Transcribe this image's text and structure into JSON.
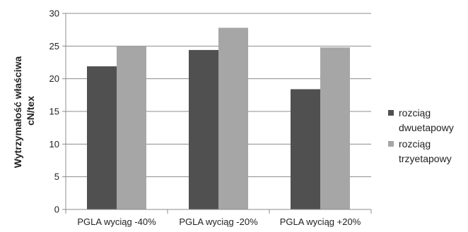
{
  "chart_data": {
    "type": "bar",
    "title": "",
    "xlabel": "",
    "ylabel": [
      "Wytrzymałość właściwa",
      "cN/tex"
    ],
    "categories": [
      "PGLA wyciąg -40%",
      "PGLA wyciąg -20%",
      "PGLA wyciąg +20%"
    ],
    "series": [
      {
        "name": [
          "rozciąg",
          "dwuetapowy"
        ],
        "values": [
          21.9,
          24.4,
          18.4
        ],
        "color": "#505050"
      },
      {
        "name": [
          "rozciąg",
          "trzyetapowy"
        ],
        "values": [
          25.0,
          27.8,
          24.8
        ],
        "color": "#a6a6a6"
      }
    ],
    "ylim": [
      0,
      30
    ],
    "yticks": [
      0,
      5,
      10,
      15,
      20,
      25,
      30
    ],
    "grid": true,
    "legend_position": "right"
  }
}
